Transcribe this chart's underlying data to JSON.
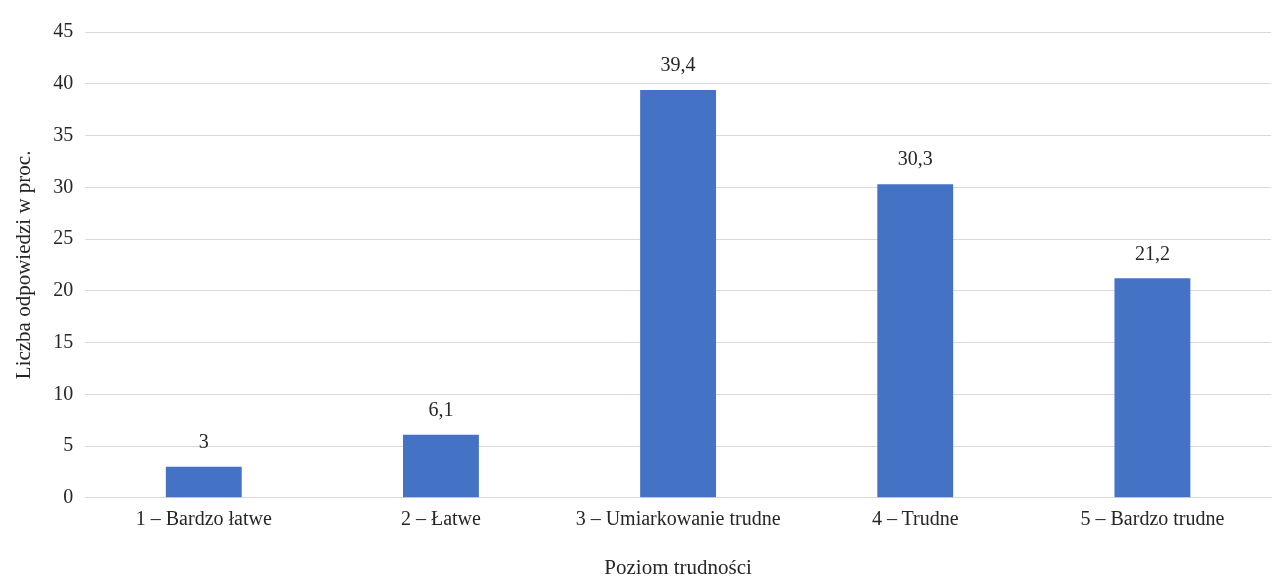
{
  "chart_data": {
    "type": "bar",
    "xlabel": "Poziom trudności",
    "ylabel": "Liczba odpowiedzi w proc.",
    "categories": [
      "1 – Bardzo łatwe",
      "2 – Łatwe",
      "3 – Umiarkowanie trudne",
      "4 – Trudne",
      "5 – Bardzo trudne"
    ],
    "values": [
      3,
      6.1,
      39.4,
      30.3,
      21.2
    ],
    "value_labels": [
      "3",
      "6,1",
      "39,4",
      "30,3",
      "21,2"
    ],
    "color": "#4472c4",
    "ylim": [
      0,
      45
    ],
    "yticks": [
      0,
      5,
      10,
      15,
      20,
      25,
      30,
      35,
      40,
      45
    ],
    "grid": "y",
    "legend": false
  }
}
